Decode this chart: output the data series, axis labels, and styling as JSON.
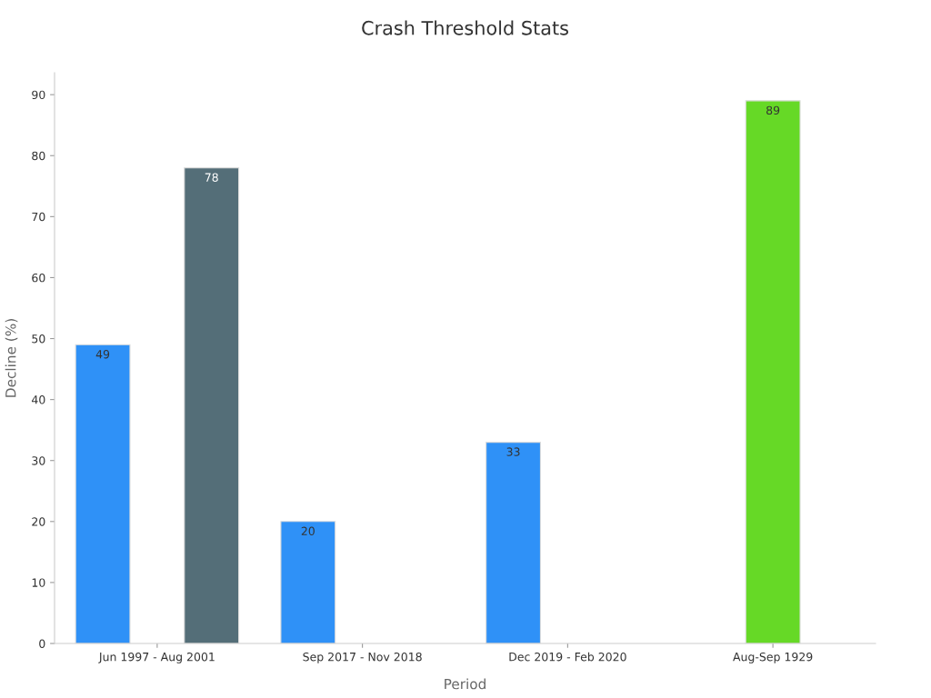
{
  "chart_data": {
    "type": "bar",
    "title": "Crash Threshold Stats",
    "xlabel": "Period",
    "ylabel": "Decline (%)",
    "categories": [
      "Jun 1997 - Aug 2001",
      "Sep 2017 - Nov 2018",
      "Dec 2019 - Feb 2020",
      "Aug-Sep 1929"
    ],
    "series": [
      {
        "color": "#2f91f7",
        "values": [
          49,
          20,
          33,
          null
        ]
      },
      {
        "color": "#66d926",
        "values": [
          null,
          null,
          null,
          89
        ]
      },
      {
        "color": "#546e78",
        "values": [
          78,
          null,
          null,
          null
        ]
      }
    ],
    "ylim": [
      0,
      93.6
    ],
    "yticks": [
      0,
      10,
      20,
      30,
      40,
      50,
      60,
      70,
      80,
      90
    ],
    "data_labels": true,
    "grid": false
  }
}
